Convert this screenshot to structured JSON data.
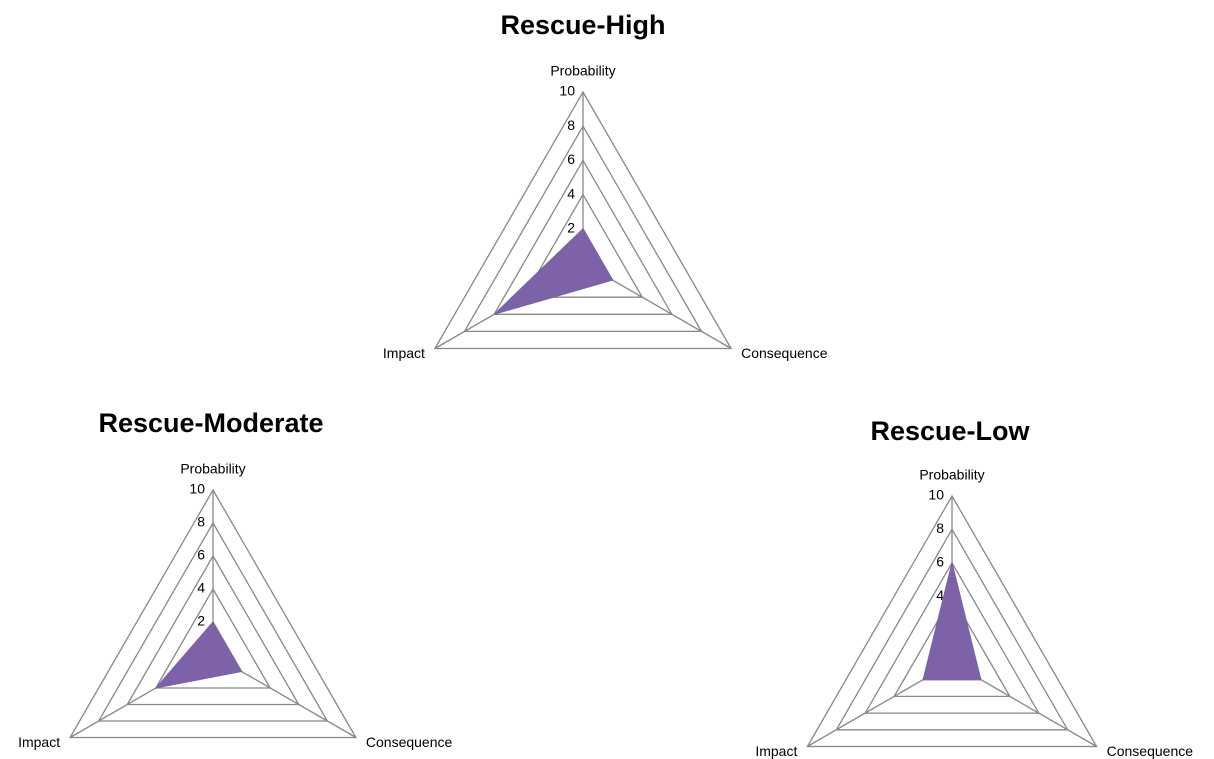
{
  "chart_data": [
    {
      "type": "radar",
      "title": "Rescue-High",
      "categories": [
        "Probability",
        "Consequence",
        "Impact"
      ],
      "values": [
        2,
        2,
        6
      ],
      "color": "#7d62a8",
      "rlim": [
        0,
        10
      ],
      "rticks": [
        0,
        2,
        4,
        6,
        8,
        10
      ],
      "grid": true
    },
    {
      "type": "radar",
      "title": "Rescue-Moderate",
      "categories": [
        "Probability",
        "Consequence",
        "Impact"
      ],
      "values": [
        2,
        2,
        4
      ],
      "color": "#7d62a8",
      "rlim": [
        0,
        10
      ],
      "rticks": [
        0,
        2,
        4,
        6,
        8,
        10
      ],
      "grid": true
    },
    {
      "type": "radar",
      "title": "Rescue-Low",
      "categories": [
        "Probability",
        "Consequence",
        "Impact"
      ],
      "values": [
        6,
        2,
        2
      ],
      "color": "#7d62a8",
      "rlim": [
        0,
        10
      ],
      "rticks": [
        0,
        2,
        4,
        6,
        8,
        10
      ],
      "grid": true
    }
  ]
}
